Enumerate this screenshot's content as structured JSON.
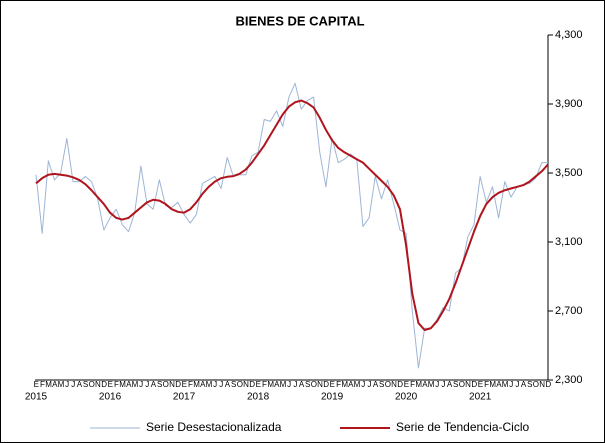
{
  "chart_data": {
    "type": "line",
    "title": "BIENES DE CAPITAL",
    "categories": [
      "E",
      "F",
      "M",
      "A",
      "M",
      "J",
      "J",
      "A",
      "S",
      "O",
      "N",
      "D",
      "E",
      "F",
      "M",
      "A",
      "M",
      "J",
      "J",
      "A",
      "S",
      "O",
      "N",
      "D",
      "E",
      "F",
      "M",
      "A",
      "M",
      "J",
      "J",
      "A",
      "S",
      "O",
      "N",
      "D",
      "E",
      "F",
      "M",
      "A",
      "M",
      "J",
      "J",
      "A",
      "S",
      "O",
      "N",
      "D",
      "E",
      "F",
      "M",
      "A",
      "M",
      "J",
      "J",
      "A",
      "S",
      "O",
      "N",
      "D",
      "E",
      "F",
      "M",
      "A",
      "M",
      "J",
      "J",
      "A",
      "S",
      "O",
      "N",
      "D",
      "E",
      "F",
      "M",
      "A",
      "M",
      "J",
      "J",
      "A",
      "S",
      "O",
      "N",
      "D"
    ],
    "years": [
      "2015",
      "2016",
      "2017",
      "2018",
      "2019",
      "2020",
      "2021"
    ],
    "series": [
      {
        "name": "Serie Desestacionalizada",
        "color": "#9db5d6",
        "width": 1,
        "values": [
          3490,
          3150,
          3570,
          3460,
          3500,
          3700,
          3450,
          3450,
          3480,
          3450,
          3350,
          3170,
          3240,
          3290,
          3200,
          3160,
          3270,
          3540,
          3320,
          3290,
          3460,
          3310,
          3300,
          3330,
          3260,
          3210,
          3260,
          3440,
          3460,
          3480,
          3410,
          3590,
          3480,
          3490,
          3490,
          3600,
          3620,
          3810,
          3800,
          3860,
          3770,
          3940,
          4020,
          3870,
          3920,
          3940,
          3620,
          3420,
          3700,
          3560,
          3580,
          3610,
          3580,
          3190,
          3240,
          3480,
          3350,
          3460,
          3320,
          3170,
          3150,
          2700,
          2370,
          2600,
          2600,
          2650,
          2720,
          2700,
          2920,
          2950,
          3130,
          3200,
          3480,
          3330,
          3420,
          3240,
          3450,
          3360,
          3420,
          3430,
          3440,
          3470,
          3560,
          3560
        ]
      },
      {
        "name": "Serie de Tendencia-Ciclo",
        "color": "#b0141c",
        "width": 2,
        "values": [
          3440,
          3470,
          3490,
          3495,
          3490,
          3485,
          3475,
          3460,
          3435,
          3400,
          3360,
          3320,
          3270,
          3240,
          3230,
          3240,
          3270,
          3300,
          3330,
          3345,
          3340,
          3320,
          3290,
          3275,
          3270,
          3290,
          3330,
          3380,
          3420,
          3450,
          3470,
          3478,
          3482,
          3495,
          3520,
          3560,
          3610,
          3660,
          3720,
          3780,
          3840,
          3885,
          3910,
          3920,
          3905,
          3880,
          3820,
          3750,
          3690,
          3645,
          3620,
          3600,
          3580,
          3560,
          3525,
          3490,
          3455,
          3420,
          3370,
          3290,
          3080,
          2800,
          2630,
          2590,
          2600,
          2640,
          2700,
          2770,
          2860,
          2960,
          3060,
          3160,
          3250,
          3320,
          3360,
          3385,
          3400,
          3410,
          3420,
          3430,
          3450,
          3480,
          3510,
          3550
        ]
      }
    ],
    "ylim": [
      2300,
      4300
    ],
    "yticks": [
      {
        "value": 2300,
        "label": "2,300"
      },
      {
        "value": 2700,
        "label": "2,700"
      },
      {
        "value": 3100,
        "label": "3,100"
      },
      {
        "value": 3500,
        "label": "3,500"
      },
      {
        "value": 3900,
        "label": "3,900"
      },
      {
        "value": 4300,
        "label": "4,300"
      }
    ]
  }
}
